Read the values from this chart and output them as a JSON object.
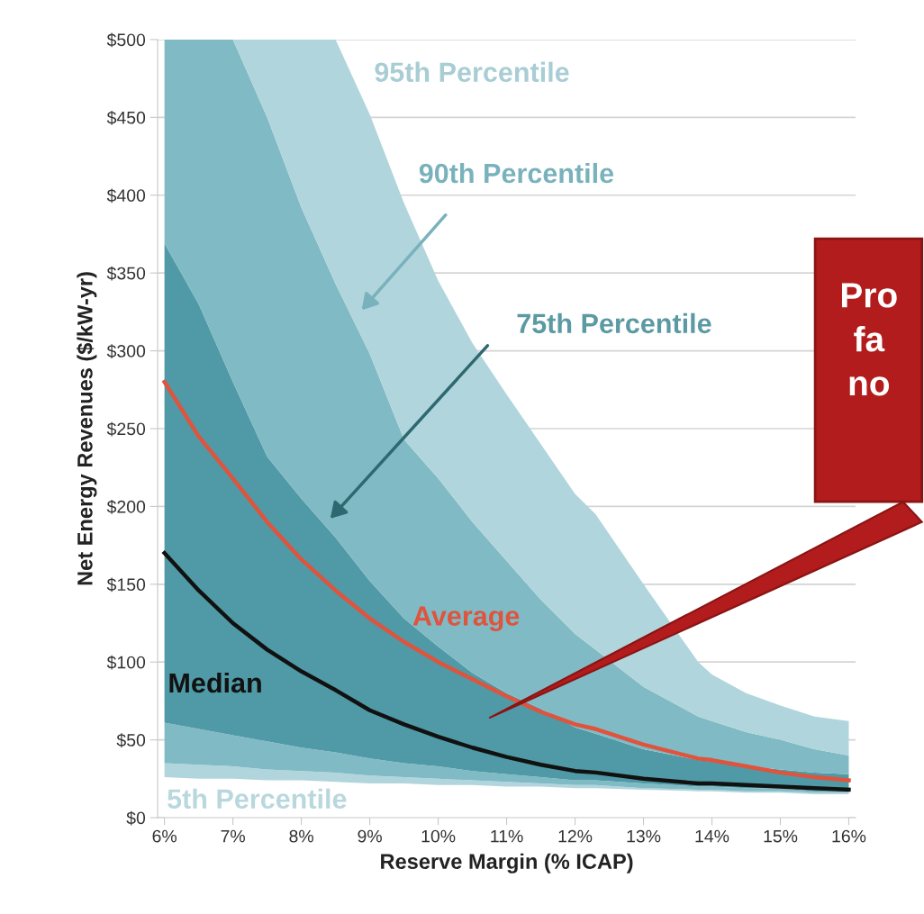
{
  "chart_data": {
    "type": "area",
    "xlabel": "Reserve Margin (% ICAP)",
    "ylabel": "Net Energy Revenues ($/kW-yr)",
    "x": [
      6,
      6.5,
      7,
      7.5,
      8,
      8.5,
      9,
      9.5,
      10,
      10.5,
      11,
      11.5,
      12,
      12.3,
      13,
      13.8,
      14,
      14.5,
      15,
      15.5,
      16
    ],
    "series": [
      {
        "color": "#ffffff",
        "values": [
          26,
          25,
          25,
          24,
          24,
          23,
          22,
          22,
          21,
          21,
          20,
          20,
          19,
          19,
          18,
          17,
          17,
          16,
          16,
          15,
          15
        ]
      },
      {
        "color": "#b1d5dc",
        "values": [
          9,
          9,
          8,
          7,
          6,
          6,
          5,
          4,
          4,
          3,
          3,
          2,
          2,
          2,
          1,
          1,
          1,
          1,
          1,
          1,
          1
        ]
      },
      {
        "color": "#80bac4",
        "values": [
          26,
          23,
          20,
          18,
          15,
          13,
          11,
          9,
          8,
          6,
          5,
          4,
          3,
          3,
          3,
          2,
          2,
          2,
          2,
          1,
          1
        ]
      },
      {
        "color": "#4f9aa6",
        "values": [
          308,
          273,
          227,
          183,
          160,
          138,
          114,
          93,
          77,
          63,
          52,
          44,
          34,
          30,
          22,
          17,
          16,
          14,
          12,
          12,
          11
        ]
      },
      {
        "color": "#80bac4",
        "values": [
          131,
          170,
          220,
          218,
          187,
          163,
          146,
          115,
          108,
          97,
          85,
          70,
          60,
          54,
          40,
          28,
          26,
          22,
          19,
          15,
          12
        ]
      },
      {
        "color": "#b1d5dc",
        "values": [
          0,
          0,
          0,
          50,
          108,
          157,
          154,
          152,
          127,
          115,
          107,
          100,
          90,
          87,
          66,
          35,
          30,
          25,
          22,
          21,
          22
        ]
      },
      {
        "type": "line",
        "color": "#e0533c",
        "values": [
          280,
          245,
          218,
          190,
          166,
          146,
          128,
          113,
          100,
          89,
          78,
          68,
          60,
          57,
          47,
          38,
          37,
          33,
          29,
          26,
          24
        ]
      },
      {
        "type": "line",
        "color": "#111111",
        "values": [
          170,
          146,
          125,
          108,
          94,
          82,
          69,
          60,
          52,
          45,
          39,
          34,
          30,
          29,
          25,
          22,
          22,
          21,
          20,
          19,
          18
        ]
      }
    ],
    "annotations": [
      "95th Percentile",
      "90th Percentile",
      "75th Percentile",
      "Average",
      {
        "text": "Median",
        "x": 6.05,
        "y": 85
      },
      "5th Percentile",
      "Pro\nfa\nno"
    ],
    "xlim": [
      5.9,
      16.1
    ],
    "xticks": [
      {
        "value": 6,
        "label": "6%"
      },
      {
        "value": 7,
        "label": "7%"
      },
      {
        "value": 8,
        "label": "8%"
      },
      {
        "value": 9,
        "label": "9%"
      },
      {
        "value": 10,
        "label": "10%"
      },
      {
        "value": 11,
        "label": "11%"
      },
      {
        "value": 12,
        "label": "12%"
      },
      {
        "value": 13,
        "label": "13%"
      },
      {
        "value": 14,
        "label": "14%"
      },
      {
        "value": 15,
        "label": "15%"
      },
      {
        "value": 16,
        "label": "16%"
      }
    ],
    "ylim": [
      0,
      500
    ],
    "yticks": [
      {
        "value": 0,
        "label": "$0"
      },
      {
        "value": 50,
        "label": "$50"
      },
      {
        "value": 100,
        "label": "$100"
      },
      {
        "value": 150,
        "label": "$150"
      },
      {
        "value": 200,
        "label": "$200"
      },
      {
        "value": 250,
        "label": "$250"
      },
      {
        "value": 300,
        "label": "$300"
      },
      {
        "value": 350,
        "label": "$350"
      },
      {
        "value": 400,
        "label": "$400"
      },
      {
        "value": 450,
        "label": "$450"
      },
      {
        "value": 500,
        "label": "$500"
      }
    ],
    "stacked": true,
    "grid": "y",
    "legend": false,
    "marker": "none"
  }
}
